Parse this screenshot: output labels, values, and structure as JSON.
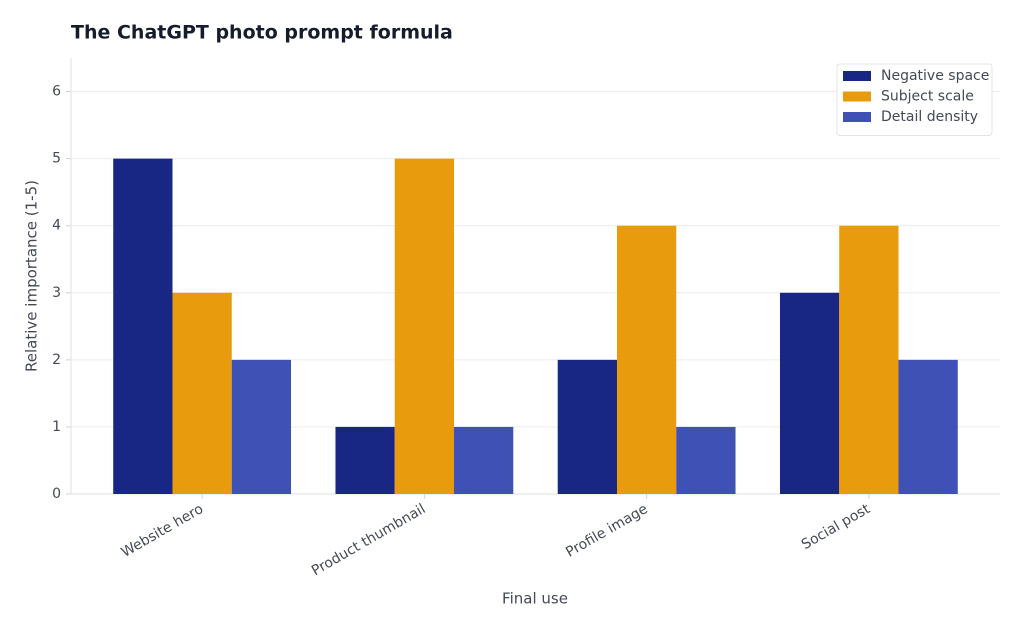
{
  "chart_data": {
    "type": "bar",
    "title": "The ChatGPT photo prompt formula",
    "x_label": "Final use",
    "y_label": "Relative importance (1-5)",
    "categories": [
      "Website hero",
      "Product thumbnail",
      "Profile image",
      "Social post"
    ],
    "series": [
      {
        "name": "Negative space",
        "color": "#172783",
        "values": [
          5,
          1,
          2,
          3
        ]
      },
      {
        "name": "Subject scale",
        "color": "#e89b0c",
        "values": [
          3,
          5,
          4,
          4
        ]
      },
      {
        "name": "Detail density",
        "color": "#3f51b5",
        "values": [
          2,
          1,
          1,
          2
        ]
      }
    ],
    "ylim": [
      0,
      6.5
    ],
    "yticks": [
      0,
      1,
      2,
      3,
      4,
      5,
      6
    ],
    "grid": true,
    "legend": "upper right"
  }
}
